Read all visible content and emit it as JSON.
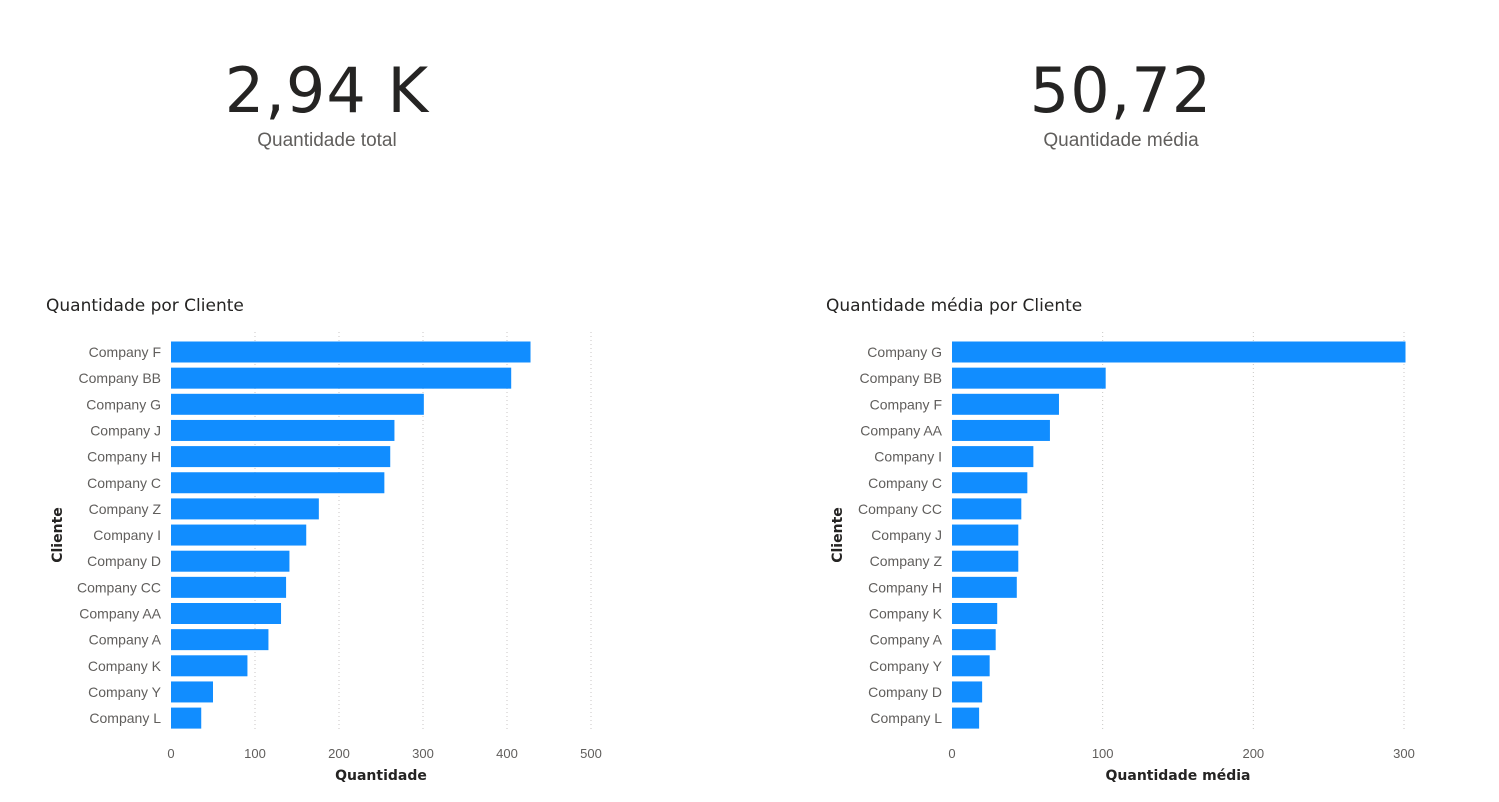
{
  "kpis": [
    {
      "value": "2,94 K",
      "label": "Quantidade total"
    },
    {
      "value": "50,72",
      "label": "Quantidade média"
    }
  ],
  "colors": {
    "bar": "#118DFF"
  },
  "chart_data": [
    {
      "type": "bar",
      "orientation": "horizontal",
      "title": "Quantidade por Cliente",
      "xlabel": "Quantidade",
      "ylabel": "Cliente",
      "xlim": [
        0,
        500
      ],
      "xticks": [
        0,
        100,
        200,
        300,
        400,
        500
      ],
      "grid": true,
      "categories": [
        "Company F",
        "Company BB",
        "Company G",
        "Company J",
        "Company H",
        "Company C",
        "Company Z",
        "Company I",
        "Company D",
        "Company CC",
        "Company AA",
        "Company A",
        "Company K",
        "Company Y",
        "Company L"
      ],
      "values": [
        428,
        405,
        301,
        266,
        261,
        254,
        176,
        161,
        141,
        137,
        131,
        116,
        91,
        50,
        36
      ]
    },
    {
      "type": "bar",
      "orientation": "horizontal",
      "title": "Quantidade média por Cliente",
      "xlabel": "Quantidade média",
      "ylabel": "Cliente",
      "xlim": [
        0,
        300
      ],
      "xticks": [
        0,
        100,
        200,
        300
      ],
      "grid": true,
      "categories": [
        "Company G",
        "Company BB",
        "Company F",
        "Company AA",
        "Company I",
        "Company C",
        "Company CC",
        "Company J",
        "Company Z",
        "Company H",
        "Company K",
        "Company A",
        "Company Y",
        "Company D",
        "Company L"
      ],
      "values": [
        301,
        102,
        71,
        65,
        54,
        50,
        46,
        44,
        44,
        43,
        30,
        29,
        25,
        20,
        18
      ]
    }
  ]
}
